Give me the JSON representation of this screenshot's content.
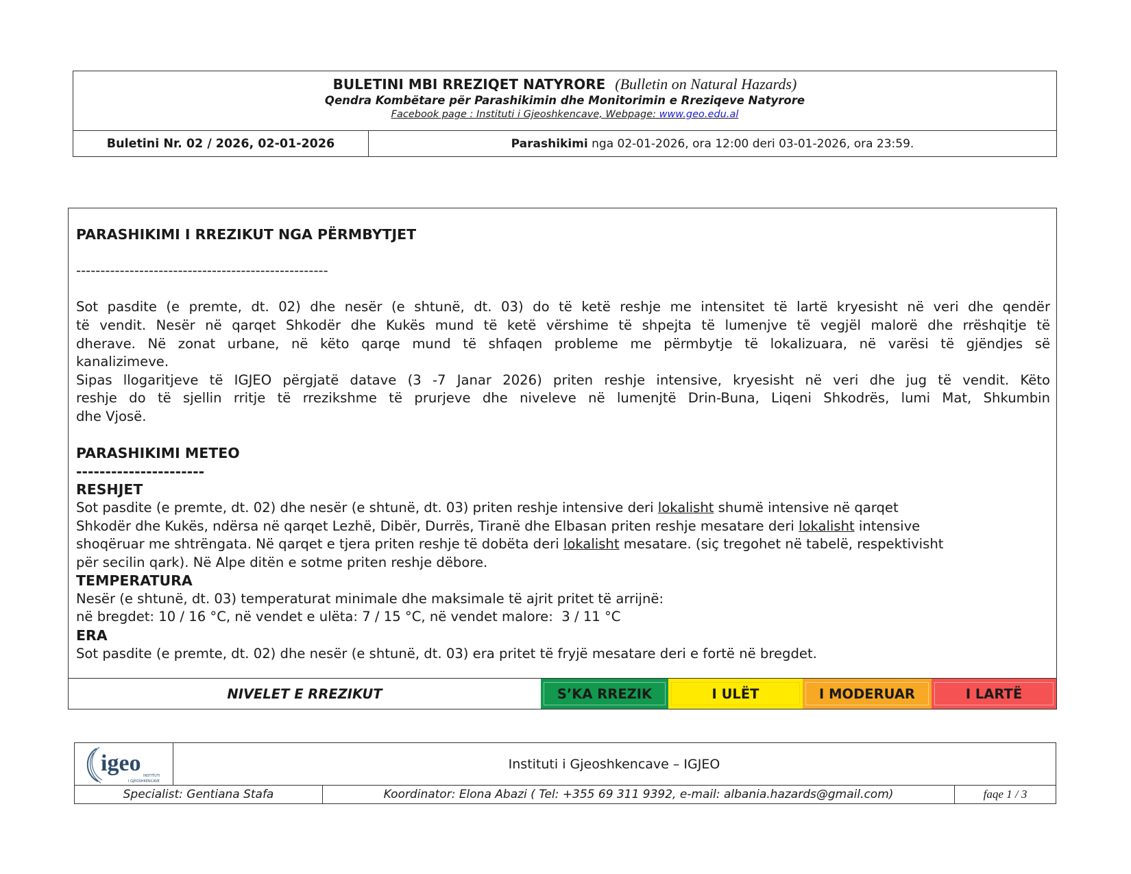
{
  "header": {
    "title": "BULETINI MBI RREZIQET NATYRORE",
    "title_en": "(Bulletin on Natural Hazards)",
    "subtitle": "Qendra Kombëtare për Parashikimin dhe Monitorimin e Rreziqeve Natyrore",
    "facebook_text": "Facebook page : Instituti i Gjeoshkencave, Webpage: ",
    "website": "www.geo.edu.al",
    "bulletin_number": "Buletini Nr. 02 / 2026, 02-01-2026",
    "forecast_label": "Parashikimi",
    "forecast_period": " nga 02-01-2026, ora 12:00 deri 03-01-2026, ora 23:59."
  },
  "flood": {
    "heading": "PARASHIKIMI I RREZIKUT NGA PËRMBYTJET",
    "separator": "----------------------------------------------------",
    "p1": [
      "Sot pasdite (e premte, dt. 02) dhe  nesër (e shtunë, dt. 03) do të ketë reshje me intensitet të lartë kryesisht në veri dhe qendër",
      "të vendit. Nesër në qarqet Shkodër dhe Kukës mund të ketë vërshime të shpejta të lumenjve të vegjël malorë dhe rrëshqitje të",
      "dherave. Në zonat urbane, në këto qarqe mund të shfaqen probleme me përmbytje të lokalizuara, në varësi të gjëndjes së",
      "kanalizimeve."
    ],
    "p2": [
      "Sipas llogaritjeve të IGJEO përgjatë datave (3 -7 Janar 2026) priten reshje intensive, kryesisht në veri dhe jug të vendit. Këto",
      "reshje do të sjellin rritje të rrezikshme të prurjeve dhe niveleve në lumenjtë Drin-Buna, Liqeni Shkodrës, lumi Mat, Shkumbin",
      "dhe Vjosë."
    ]
  },
  "meteo": {
    "heading": "PARASHIKIMI METEO",
    "separator": "----------------------",
    "rain_heading": "RESHJET",
    "rain": {
      "l1a": "Sot pasdite (e premte, dt. 02) dhe nesër (e shtunë, dt. 03) priten reshje intensive deri ",
      "l1u": "lokalisht",
      "l1b": " shumë intensive në qarqet",
      "l2a": "Shkodër dhe Kukës, ndërsa në qarqet Lezhë, Dibër, Durrës, Tiranë dhe Elbasan priten reshje mesatare deri ",
      "l2u": "lokalisht",
      "l2b": " intensive",
      "l3a": "shoqëruar me shtrëngata. Në qarqet e tjera priten reshje të dobëta deri ",
      "l3u": "lokalisht",
      "l3b": " mesatare. (siç tregohet në tabelë, respektivisht",
      "l4": "për secilin qark). Në Alpe ditën e sotme priten reshje dëbore."
    },
    "temp_heading": "TEMPERATURA",
    "temp_l1": "Nesër (e shtunë, dt. 03) temperaturat minimale dhe maksimale të ajrit pritet të arrijnë:",
    "temp_l2": "në bregdet: 10 / 16 °C, në vendet e ulëta: 7 / 15 °C, në vendet malore:  3 / 11 °C",
    "wind_heading": "ERA",
    "wind_l1": "Sot pasdite (e premte, dt. 02) dhe nesër (e shtunë, dt. 03) era pritet të fryjë mesatare deri e fortë në bregdet."
  },
  "risk_levels": {
    "label": "NIVELET E RREZIKUT",
    "levels": [
      {
        "label": "S’KA RREZIK",
        "color": "#12994f"
      },
      {
        "label": "I ULËT",
        "color": "#ffea00"
      },
      {
        "label": "I MODERUAR",
        "color": "#f7a825"
      },
      {
        "label": "I LARTË",
        "color": "#f55353"
      }
    ]
  },
  "footer": {
    "logo_text": "igeo",
    "logo_sub1": "INSTITUTI",
    "logo_sub2": "I GJEOSHKENCAVE",
    "institute": "Instituti i Gjeoshkencave – IGJEO",
    "specialist": "Specialist: Gentiana Stafa",
    "coordinator": "Koordinator: Elona Abazi ( Tel: +355 69 311 9392, e-mail: albania.hazards@gmail.com)",
    "page": "faqe 1 / 3"
  }
}
